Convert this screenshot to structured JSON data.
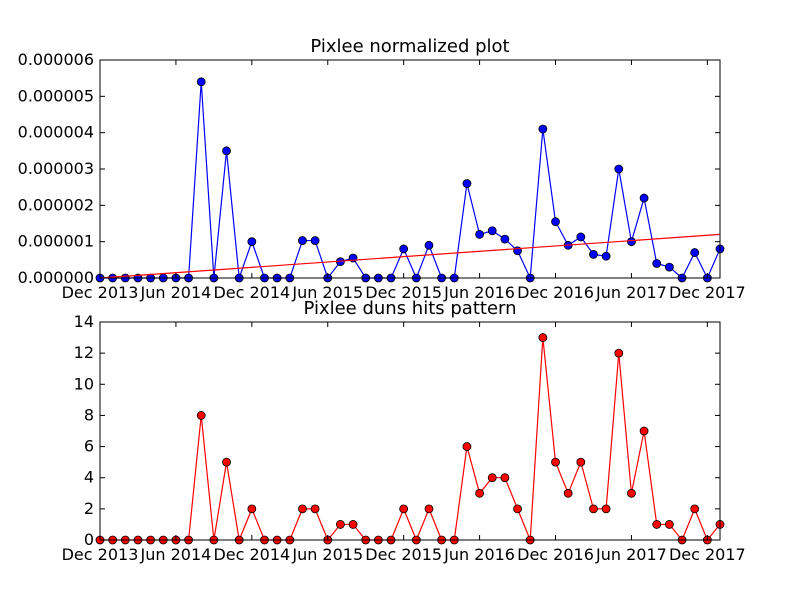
{
  "chart_data": [
    {
      "type": "line",
      "title": "Pixlee normalized plot",
      "xlabel": "",
      "ylabel": "",
      "x_tick_labels": [
        "Dec 2013",
        "Jun 2014",
        "Dec 2014",
        "Jun 2015",
        "Dec 2015",
        "Jun 2016",
        "Dec 2016",
        "Jun 2017",
        "Dec 2017"
      ],
      "y_tick_labels": [
        "0.000000",
        "0.000001",
        "0.000002",
        "0.000003",
        "0.000004",
        "0.000005",
        "0.000006"
      ],
      "ylim": [
        0,
        6e-06
      ],
      "grid": false,
      "series": [
        {
          "color": "#0000ff",
          "marker": "circle",
          "x": [
            "2013-12",
            "2014-01",
            "2014-02",
            "2014-03",
            "2014-04",
            "2014-05",
            "2014-06",
            "2014-07",
            "2014-08",
            "2014-09",
            "2014-10",
            "2014-11",
            "2014-12",
            "2015-01",
            "2015-02",
            "2015-03",
            "2015-04",
            "2015-05",
            "2015-06",
            "2015-07",
            "2015-08",
            "2015-09",
            "2015-10",
            "2015-11",
            "2015-12",
            "2016-01",
            "2016-02",
            "2016-03",
            "2016-04",
            "2016-05",
            "2016-06",
            "2016-07",
            "2016-08",
            "2016-09",
            "2016-10",
            "2016-11",
            "2016-12",
            "2017-01",
            "2017-02",
            "2017-03",
            "2017-04",
            "2017-05",
            "2017-06",
            "2017-07",
            "2017-08",
            "2017-09",
            "2017-10",
            "2017-11",
            "2017-12",
            "2018-01"
          ],
          "values": [
            0,
            0,
            0,
            0,
            0,
            0,
            0,
            0,
            5.4e-06,
            0,
            3.5e-06,
            0,
            1e-06,
            0,
            0,
            0,
            1.03e-06,
            1.03e-06,
            0,
            4.5e-07,
            5.5e-07,
            0,
            0,
            0,
            8e-07,
            0,
            9e-07,
            0,
            0,
            2.6e-06,
            1.2e-06,
            1.3e-06,
            1.07e-06,
            7.5e-07,
            0,
            4.1e-06,
            1.55e-06,
            9e-07,
            1.13e-06,
            6.5e-07,
            6e-07,
            3e-06,
            1e-06,
            2.2e-06,
            4e-07,
            3e-07,
            0,
            7e-07,
            0,
            8e-07
          ]
        }
      ],
      "trendline": {
        "color": "#ff0000",
        "start": 0,
        "end": 1.2e-06
      }
    },
    {
      "type": "line",
      "title": "Pixlee duns hits pattern",
      "xlabel": "",
      "ylabel": "",
      "x_tick_labels": [
        "Dec 2013",
        "Jun 2014",
        "Dec 2014",
        "Jun 2015",
        "Dec 2015",
        "Jun 2016",
        "Dec 2016",
        "Jun 2017",
        "Dec 2017"
      ],
      "y_tick_labels": [
        "0",
        "2",
        "4",
        "6",
        "8",
        "10",
        "12",
        "14"
      ],
      "ylim": [
        0,
        14
      ],
      "grid": false,
      "series": [
        {
          "color": "#ff0000",
          "marker": "circle",
          "x": [
            "2013-12",
            "2014-01",
            "2014-02",
            "2014-03",
            "2014-04",
            "2014-05",
            "2014-06",
            "2014-07",
            "2014-08",
            "2014-09",
            "2014-10",
            "2014-11",
            "2014-12",
            "2015-01",
            "2015-02",
            "2015-03",
            "2015-04",
            "2015-05",
            "2015-06",
            "2015-07",
            "2015-08",
            "2015-09",
            "2015-10",
            "2015-11",
            "2015-12",
            "2016-01",
            "2016-02",
            "2016-03",
            "2016-04",
            "2016-05",
            "2016-06",
            "2016-07",
            "2016-08",
            "2016-09",
            "2016-10",
            "2016-11",
            "2016-12",
            "2017-01",
            "2017-02",
            "2017-03",
            "2017-04",
            "2017-05",
            "2017-06",
            "2017-07",
            "2017-08",
            "2017-09",
            "2017-10",
            "2017-11",
            "2017-12",
            "2018-01"
          ],
          "values": [
            0,
            0,
            0,
            0,
            0,
            0,
            0,
            0,
            8,
            0,
            5,
            0,
            2,
            0,
            0,
            0,
            2,
            2,
            0,
            1,
            1,
            0,
            0,
            0,
            2,
            0,
            2,
            0,
            0,
            6,
            3,
            4,
            4,
            2,
            0,
            13,
            5,
            3,
            5,
            2,
            2,
            12,
            3,
            7,
            1,
            1,
            0,
            2,
            0,
            1
          ]
        }
      ]
    }
  ]
}
